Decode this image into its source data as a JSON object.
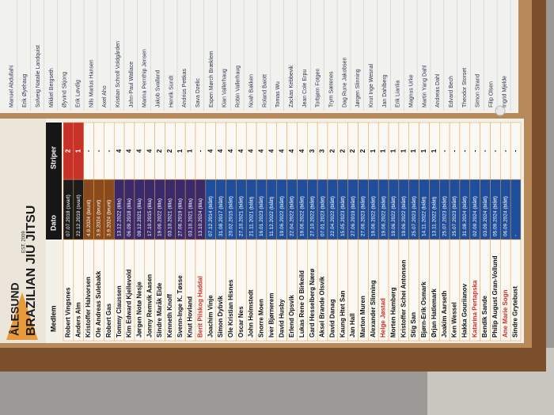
{
  "logo": {
    "title": "BRAZILIAN JIU JITSU",
    "club": "ÅLESUND",
    "est": "EST. 2009"
  },
  "list": {
    "names": [
      "Manuel Abdullahi",
      "Erik Øyehaug",
      "Solveig Natalie Landquist",
      "Mikkel Bergseth",
      "Øyvind Skjong",
      "Erik Løvdig",
      "Nils Marius Hansen",
      "Axel Aho",
      "Kristian Schroll Voldgården",
      "John-Paul Wallace",
      "Marina Pernthip Jensen",
      "Jakob Svalland",
      "Henrik Sundt",
      "Andrius Pettkas",
      "Sava Dzelic",
      "Espen Mørch Bræklem",
      "Kian Vallerhaug",
      "Robin Vallerhaug",
      "Noah Bakken",
      "Roland Baiott",
      "Tomas Wu",
      "Zackas Kebbevik",
      "Jean Cole Erpu",
      "Torbjørn Fotgen",
      "Trym Sætenes",
      "Dag Rune Jakobsen",
      "Jørgen Slinning",
      "Knut Inge Wesnal",
      "Jan Dahlberg",
      "Erik Lianlia",
      "Magnus Urke",
      "Martin Yang Dahl",
      "Andreas Dahl",
      "Edvard Bech",
      "Theodor Storset",
      "Simon Strand",
      "Filip Olsen",
      "Ingrid Mjelde"
    ]
  },
  "table": {
    "headers": [
      "Medlem",
      "Dato",
      "Striper"
    ],
    "rows": [
      {
        "name": "Robert Vingsnes",
        "date": "07.07.2018 (svart)",
        "stripes": 2,
        "color": "#1b1b1b"
      },
      {
        "name": "Anders Alm",
        "date": "22.12.2019 (svart)",
        "stripes": 1,
        "color": "#1b1b1b"
      },
      {
        "name": "Kristoffer Halvorsen",
        "date": "4.9.2024 (brunt)",
        "stripes": "-",
        "color": "#8a4a1c"
      },
      {
        "name": "Ole Andreas Sulebakk",
        "date": "3.9.2024 (brunt)",
        "stripes": "-",
        "color": "#8a4a1c"
      },
      {
        "name": "Robert Gas",
        "date": "3.9.2024 (brunt)",
        "stripes": "-",
        "color": "#8a4a1c"
      },
      {
        "name": "Tommy Claussen",
        "date": "13.12.2022 (lilla)",
        "stripes": 4,
        "color": "#3a2a6a"
      },
      {
        "name": "Kim Edward Kjellevold",
        "date": "06.09.2018 (lilla)",
        "stripes": 4,
        "color": "#3a2a6a"
      },
      {
        "name": "Jørgen Notø Nesje",
        "date": "09.12.2021 (lilla)",
        "stripes": 4,
        "color": "#3a2a6a"
      },
      {
        "name": "Jonny Remvik Aasen",
        "date": "17.10.2015 (lilla)",
        "stripes": 4,
        "color": "#3a2a6a"
      },
      {
        "name": "Sindre Maråk Eide",
        "date": "19.06.2022 (lilla)",
        "stripes": 2,
        "color": "#3a2a6a"
      },
      {
        "name": "Kenneth Knoff",
        "date": "03.10.2021 (lilla)",
        "stripes": 2,
        "color": "#3a2a6a"
      },
      {
        "name": "Svenn-Inge K. Tøsse",
        "date": "27.06.2019 (lilla)",
        "stripes": 1,
        "color": "#3a2a6a"
      },
      {
        "name": "Knut Hovland",
        "date": "03.10.2021 (lilla)",
        "stripes": 1,
        "color": "#3a2a6a"
      },
      {
        "name": "Berit Pilskog Haddal",
        "date": "13.10.2024 (lilla)",
        "stripes": "-",
        "color": "#3a2a6a",
        "name_color": "#d0302a"
      },
      {
        "name": "Joachim Vinje",
        "date": "07.12.2014 (blått)",
        "stripes": 4,
        "color": "#1f4f9c"
      },
      {
        "name": "Simon Dybvik",
        "date": "31.08.2017 (blått)",
        "stripes": 4,
        "color": "#1f4f9c"
      },
      {
        "name": "Ole Kristian Hisnes",
        "date": "20.02.2015 (blått)",
        "stripes": 4,
        "color": "#1f4f9c"
      },
      {
        "name": "Oscar Nes",
        "date": "27.10.2021 (blått)",
        "stripes": 4,
        "color": "#1f4f9c"
      },
      {
        "name": "John Holmstedt",
        "date": "21.11.2021 (blått)",
        "stripes": 4,
        "color": "#1f4f9c"
      },
      {
        "name": "Snorre Moen",
        "date": "16.01.2023 (blått)",
        "stripes": 4,
        "color": "#1f4f9c"
      },
      {
        "name": "Iver Bjørnerem",
        "date": "11.12.2022 (blått)",
        "stripes": 4,
        "color": "#1f4f9c"
      },
      {
        "name": "David Husby",
        "date": "19.06.2022 (blått)",
        "stripes": 4,
        "color": "#1f4f9c"
      },
      {
        "name": "Erlend Opsvik",
        "date": "22.04.2022 (blått)",
        "stripes": 4,
        "color": "#1f4f9c"
      },
      {
        "name": "Lukas Rene O Birkeild",
        "date": "19.06.2022 (blått)",
        "stripes": 4,
        "color": "#1f4f9c"
      },
      {
        "name": "Gard Hesselberg Nærø",
        "date": "27.10.2022 (blått)",
        "stripes": 3,
        "color": "#1f4f9c"
      },
      {
        "name": "Aksel Brande Olsvik",
        "date": "07.01.2023 (blått)",
        "stripes": 3,
        "color": "#1f4f9c"
      },
      {
        "name": "David Danag",
        "date": "22.04.2022 (blått)",
        "stripes": 2,
        "color": "#1f4f9c"
      },
      {
        "name": "Kaung Htet San",
        "date": "15.05.2023 (blått)",
        "stripes": 2,
        "color": "#1f4f9c"
      },
      {
        "name": "Jan Hall",
        "date": "27.06.2019 (blått)",
        "stripes": 2,
        "color": "#1f4f9c"
      },
      {
        "name": "Marton Muren",
        "date": "27.06.2023 (blått)",
        "stripes": 2,
        "color": "#1f4f9c"
      },
      {
        "name": "Alexander Slinning",
        "date": "19.06.2022 (blått)",
        "stripes": 1,
        "color": "#1f4f9c"
      },
      {
        "name": "Helge Jøstad",
        "date": "19.06.2022 (blått)",
        "stripes": 1,
        "color": "#1f4f9c",
        "name_color": "#d0302a"
      },
      {
        "name": "Morten Hamberg",
        "date": "19.06.2022 (blått)",
        "stripes": 1,
        "color": "#1f4f9c"
      },
      {
        "name": "Kristoffer Schei Antonsen",
        "date": "19.06.2022 (blått)",
        "stripes": 1,
        "color": "#1f4f9c"
      },
      {
        "name": "Stig San",
        "date": "25.07.2023 (blått)",
        "stripes": 1,
        "color": "#1f4f9c"
      },
      {
        "name": "Bjørn-Erik Osmark",
        "date": "14.11.2022 (blått)",
        "stripes": 1,
        "color": "#1f4f9c"
      },
      {
        "name": "Ørjan Hatlemark",
        "date": "13.11.2022 (blått)",
        "stripes": 1,
        "color": "#1f4f9c"
      },
      {
        "name": "Joakim Aarseth",
        "date": "25.07.2023 (blått)",
        "stripes": "-",
        "color": "#1f4f9c"
      },
      {
        "name": "Ken Wessel",
        "date": "25.07.2023 (blått)",
        "stripes": "-",
        "color": "#1f4f9c"
      },
      {
        "name": "Hakka Gouriianov",
        "date": "31.08.2024 (blått)",
        "stripes": "-",
        "color": "#1f4f9c"
      },
      {
        "name": "Katarina Pertapska",
        "date": "02.09.2024 (blått)",
        "stripes": "-",
        "color": "#1f4f9c",
        "name_color": "#d0302a"
      },
      {
        "name": "Bendik Sande",
        "date": "03.09.2024 (blått)",
        "stripes": "-",
        "color": "#1f4f9c"
      },
      {
        "name": "Philip August Gran-Vollund",
        "date": "05.09.2024 (blått)",
        "stripes": "-",
        "color": "#1f4f9c"
      },
      {
        "name": "Ane Marie Sogn",
        "date": "06.09.2024 (blått)",
        "stripes": "-",
        "color": "#1f4f9c",
        "name_color": "#d0302a"
      },
      {
        "name": "Sindre Grytebust",
        "date": "-",
        "stripes": "-",
        "color": "#1f4f9c"
      }
    ]
  }
}
